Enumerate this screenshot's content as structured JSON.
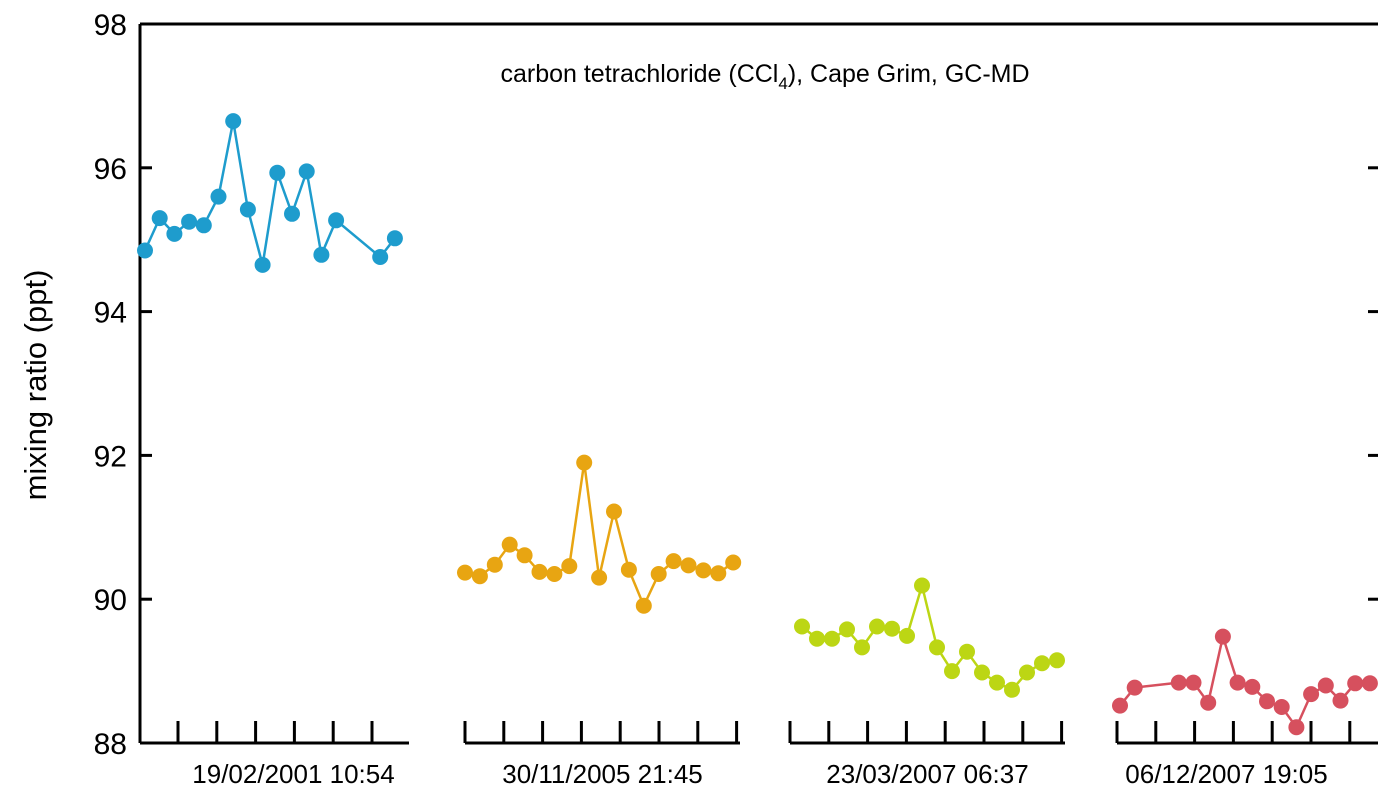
{
  "chart_data": {
    "type": "scatter",
    "title_prefix": "carbon tetrachloride (CCl",
    "title_sub": "4",
    "title_suffix": "), Cape Grim, GC-MD",
    "ylabel": "mixing ratio (ppt)",
    "ylim": [
      88,
      98
    ],
    "yticks": [
      "88",
      "90",
      "92",
      "94",
      "96",
      "98"
    ],
    "grid": false,
    "series": [
      {
        "label": "19/02/2001 10:54",
        "color": "#1e9ccd",
        "x": [
          0,
          1,
          2,
          3,
          4,
          5,
          6,
          7,
          8,
          9,
          10,
          11,
          12,
          13,
          14,
          16,
          17
        ],
        "y": [
          94.85,
          95.3,
          95.08,
          95.25,
          95.2,
          95.6,
          96.65,
          95.42,
          94.65,
          95.93,
          95.36,
          95.95,
          94.79,
          95.27,
          null,
          94.76,
          95.02
        ]
      },
      {
        "label": "30/11/2005 21:45",
        "color": "#e8a512",
        "x": [
          0,
          1,
          2,
          3,
          4,
          5,
          6,
          7,
          8,
          9,
          10,
          11,
          12,
          13,
          14,
          15,
          16,
          17,
          18
        ],
        "y": [
          90.37,
          90.32,
          90.48,
          90.76,
          90.61,
          90.38,
          90.35,
          90.46,
          91.9,
          90.3,
          91.22,
          90.41,
          89.91,
          90.35,
          90.53,
          90.47,
          90.4,
          90.36,
          90.51
        ]
      },
      {
        "label": "23/03/2007 06:37",
        "color": "#bcd614",
        "x": [
          0,
          1,
          2,
          3,
          4,
          5,
          6,
          7,
          8,
          9,
          10,
          11,
          12,
          13,
          14,
          15,
          16,
          17
        ],
        "y": [
          89.62,
          89.45,
          89.45,
          89.58,
          89.33,
          89.62,
          89.59,
          89.49,
          90.19,
          89.33,
          89.0,
          89.27,
          88.98,
          88.84,
          88.74,
          88.98,
          89.11,
          89.15
        ]
      },
      {
        "label": "06/12/2007 19:05",
        "color": "#d6505e",
        "x": [
          0,
          1,
          4,
          5,
          6,
          7,
          8,
          9,
          10,
          11,
          12,
          13,
          14,
          15,
          16,
          17
        ],
        "y": [
          88.52,
          88.77,
          88.84,
          88.84,
          88.56,
          89.48,
          88.84,
          88.78,
          88.58,
          88.5,
          88.22,
          88.68,
          88.8,
          88.59,
          88.83,
          88.83
        ]
      }
    ]
  }
}
